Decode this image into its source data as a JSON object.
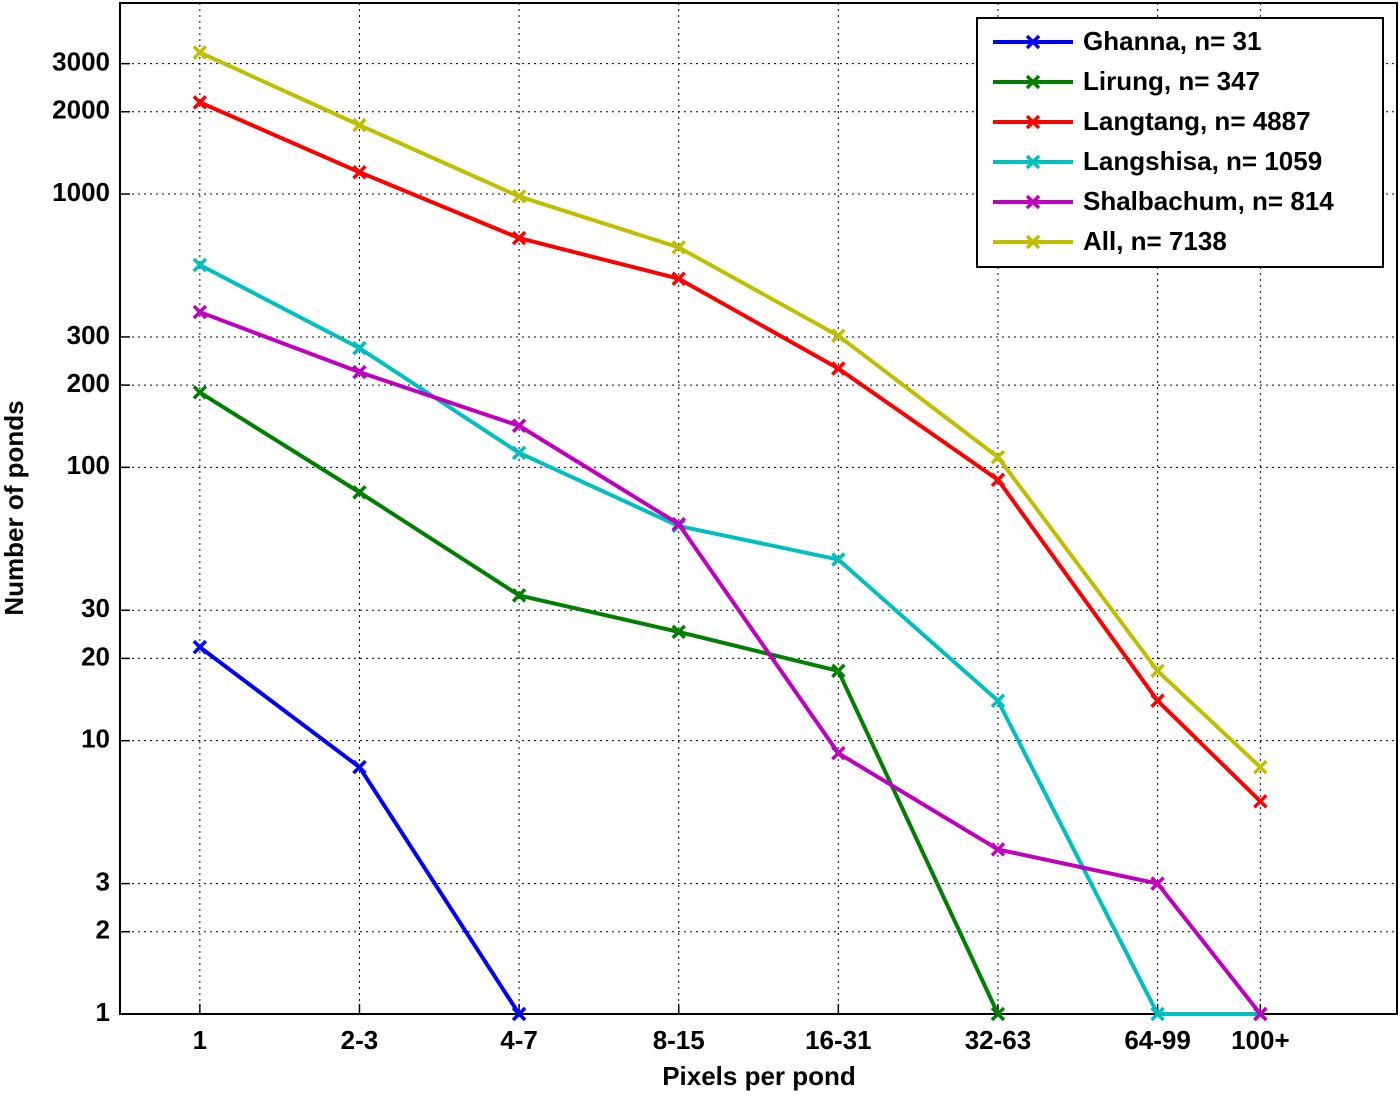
{
  "chart_data": {
    "type": "line",
    "x_label": "Pixels per pond",
    "y_label": "Number of ponds",
    "x": [
      1,
      2,
      4,
      8,
      16,
      32,
      64,
      100
    ],
    "x_scale": "log2",
    "y_scale": "log",
    "xlim": [
      0.707,
      181
    ],
    "ylim": [
      1,
      5000
    ],
    "xticks": [
      1,
      {
        "value": 2,
        "label": "2-3"
      },
      {
        "value": 4,
        "label": "4-7"
      },
      {
        "value": 8,
        "label": "8-15"
      },
      {
        "value": 16,
        "label": "16-31"
      },
      {
        "value": 32,
        "label": "32-63"
      },
      {
        "value": 64,
        "label": "64-99"
      },
      {
        "value": 100,
        "label": "100+"
      }
    ],
    "yticks": [
      1,
      2,
      3,
      10,
      20,
      30,
      100,
      200,
      300,
      1000,
      2000,
      3000
    ],
    "grid": true,
    "legend": "upper right",
    "series": [
      {
        "name": "Ghanna, n= 31",
        "color": "#0000ff",
        "values": [
          22,
          8,
          1,
          null,
          null,
          null,
          null,
          null
        ]
      },
      {
        "name": "Lirung, n= 347",
        "color": "#007f00",
        "values": [
          188,
          81,
          34,
          25,
          18,
          1,
          null,
          null
        ]
      },
      {
        "name": "Langtang, n= 4887",
        "color": "#ff0000",
        "values": [
          2165,
          1202,
          690,
          490,
          230,
          90,
          14,
          6
        ]
      },
      {
        "name": "Langshisa, n= 1059",
        "color": "#00bfbf",
        "values": [
          550,
          273,
          113,
          61,
          46,
          14,
          1,
          1
        ]
      },
      {
        "name": "Shalbachum, n= 814",
        "color": "#bf00bf",
        "values": [
          370,
          223,
          142,
          62,
          9,
          4,
          3,
          1
        ]
      },
      {
        "name": "All, n= 7138",
        "color": "#bfbf00",
        "values": [
          3295,
          1787,
          980,
          638,
          303,
          109,
          18,
          8
        ]
      }
    ]
  }
}
